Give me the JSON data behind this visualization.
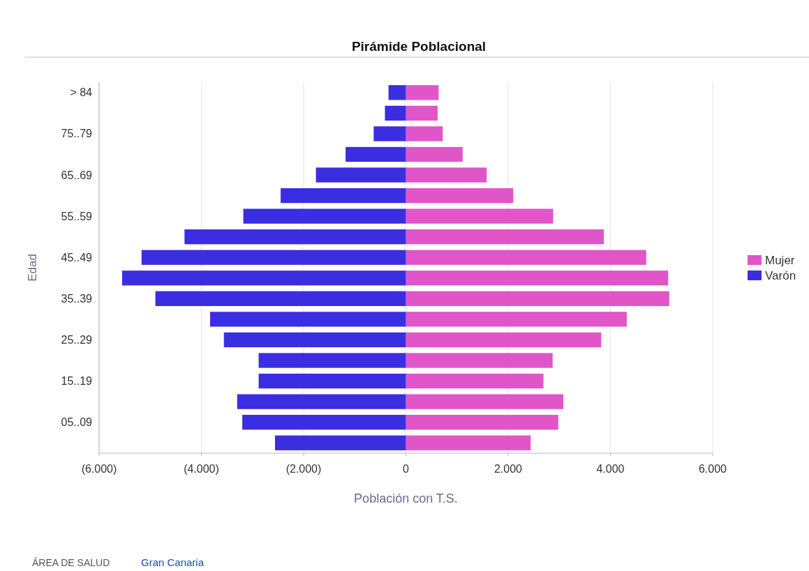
{
  "chart_data": {
    "type": "bar",
    "orientation": "horizontal",
    "stacked": true,
    "title": "Pirámide Poblacional",
    "xlabel": "Población con T.S.",
    "ylabel": "Edad",
    "categories": [
      "> 84",
      null,
      "75..79",
      null,
      "65..69",
      null,
      "55..59",
      null,
      "45..49",
      null,
      "35..39",
      null,
      "25..29",
      null,
      "15..19",
      null,
      "05..09",
      null
    ],
    "series": [
      {
        "name": "Mujer",
        "color": "#e056c8",
        "values": [
          640,
          620,
          720,
          1110,
          1580,
          2100,
          2880,
          3870,
          4700,
          5130,
          5150,
          4320,
          3820,
          2870,
          2690,
          3080,
          2980,
          2440
        ]
      },
      {
        "name": "Varón",
        "color": "#3a2ee0",
        "values": [
          -340,
          -410,
          -630,
          -1180,
          -1760,
          -2450,
          -3180,
          -4330,
          -5170,
          -5550,
          -4900,
          -3830,
          -3560,
          -2880,
          -2880,
          -3300,
          -3200,
          -2560
        ]
      }
    ],
    "xlim": [
      -6000,
      6000
    ],
    "xticks": [
      {
        "value": -6000,
        "label": "(6.000)"
      },
      {
        "value": -4000,
        "label": "(4.000)"
      },
      {
        "value": -2000,
        "label": "(2.000)"
      },
      0,
      {
        "value": 2000,
        "label": "2.000"
      },
      {
        "value": 4000,
        "label": "4.000"
      },
      {
        "value": 6000,
        "label": "6.000"
      }
    ],
    "grid": "x",
    "legend": "right",
    "annotations": [
      "ÁREA DE SALUD",
      "Gran Canaria"
    ]
  }
}
